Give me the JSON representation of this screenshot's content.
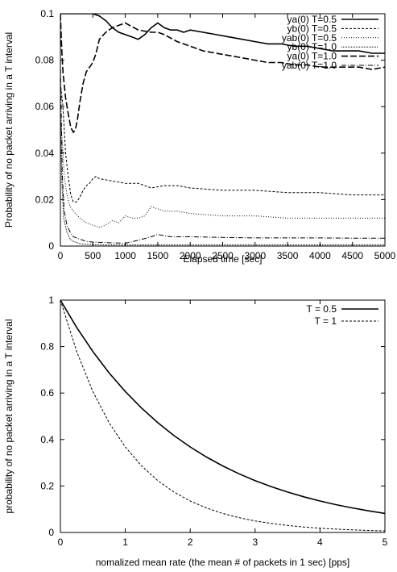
{
  "chart_data": [
    {
      "type": "line",
      "xlabel": "Elapsed time [sec]",
      "ylabel": "Probability of no packet arriving in a T interval",
      "xlim": [
        0,
        5000
      ],
      "ylim": [
        0,
        0.1
      ],
      "xticks": [
        "0",
        "500",
        "1000",
        "1500",
        "2000",
        "2500",
        "3000",
        "3500",
        "4000",
        "4500",
        "5000"
      ],
      "yticks": [
        "0",
        "0.02",
        "0.04",
        "0.06",
        "0.08",
        "0.1"
      ],
      "grid": false,
      "legend_position": "top-right",
      "series": [
        {
          "name": "ya(0)  T=0.5",
          "style": "solid",
          "x": [
            0,
            30,
            60,
            100,
            150,
            200,
            250,
            300,
            400,
            500,
            600,
            700,
            800,
            900,
            1000,
            1100,
            1200,
            1300,
            1400,
            1500,
            1600,
            1700,
            1800,
            1900,
            2000,
            2200,
            2400,
            2600,
            2800,
            3000,
            3200,
            3400,
            3600,
            3800,
            4000,
            4200,
            4400,
            4600,
            4800,
            5000
          ],
          "y": [
            0.1,
            0.1,
            0.1,
            0.1,
            0.1,
            0.1,
            0.1,
            0.1,
            0.1,
            0.1,
            0.099,
            0.097,
            0.094,
            0.092,
            0.091,
            0.09,
            0.089,
            0.091,
            0.094,
            0.096,
            0.094,
            0.093,
            0.093,
            0.092,
            0.093,
            0.092,
            0.091,
            0.09,
            0.089,
            0.088,
            0.087,
            0.087,
            0.086,
            0.086,
            0.085,
            0.084,
            0.084,
            0.084,
            0.083,
            0.083
          ]
        },
        {
          "name": "yb(0)  T=0.5",
          "style": "dashed",
          "x": [
            0,
            40,
            80,
            120,
            160,
            200,
            250,
            300,
            350,
            400,
            450,
            500,
            550,
            600,
            800,
            1000,
            1200,
            1300,
            1400,
            1600,
            1800,
            2000,
            2500,
            3000,
            3500,
            4000,
            4500,
            5000
          ],
          "y": [
            0.07,
            0.06,
            0.04,
            0.03,
            0.022,
            0.019,
            0.019,
            0.021,
            0.024,
            0.026,
            0.027,
            0.029,
            0.03,
            0.029,
            0.028,
            0.027,
            0.027,
            0.026,
            0.025,
            0.026,
            0.026,
            0.025,
            0.024,
            0.024,
            0.023,
            0.023,
            0.022,
            0.022
          ]
        },
        {
          "name": "yab(0)  T=0.5",
          "style": "dotted",
          "x": [
            0,
            30,
            60,
            100,
            150,
            200,
            300,
            400,
            500,
            600,
            700,
            800,
            900,
            1000,
            1100,
            1200,
            1300,
            1400,
            1500,
            1600,
            1800,
            2000,
            2500,
            3000,
            3500,
            4000,
            4500,
            5000
          ],
          "y": [
            0.055,
            0.045,
            0.03,
            0.022,
            0.017,
            0.015,
            0.012,
            0.01,
            0.009,
            0.008,
            0.009,
            0.011,
            0.01,
            0.013,
            0.012,
            0.012,
            0.013,
            0.017,
            0.016,
            0.015,
            0.015,
            0.014,
            0.013,
            0.013,
            0.012,
            0.012,
            0.012,
            0.012
          ]
        },
        {
          "name": "yb(0)  T=1.0",
          "style": "dense-dotted",
          "x": [
            0,
            20,
            50,
            100,
            150,
            200,
            300,
            400,
            500,
            700,
            1000,
            1500,
            2000,
            3000,
            4000,
            5000
          ],
          "y": [
            0.06,
            0.03,
            0.012,
            0.006,
            0.003,
            0.002,
            0.001,
            0.0008,
            0.0006,
            0.0005,
            0.0005,
            0.0005,
            0.0005,
            0.0005,
            0.0005,
            0.0005
          ]
        },
        {
          "name": "ya(0)  T=1.0",
          "style": "long-dash",
          "x": [
            0,
            20,
            40,
            80,
            120,
            160,
            200,
            230,
            260,
            300,
            350,
            400,
            450,
            500,
            550,
            600,
            700,
            800,
            900,
            1000,
            1200,
            1400,
            1500,
            1600,
            1800,
            2000,
            2200,
            2400,
            2600,
            2800,
            3000,
            3200,
            3400,
            3600,
            3800,
            4000,
            4200,
            4400,
            4600,
            4800,
            5000
          ],
          "y": [
            0.1,
            0.085,
            0.075,
            0.064,
            0.057,
            0.051,
            0.049,
            0.05,
            0.054,
            0.062,
            0.07,
            0.075,
            0.077,
            0.079,
            0.083,
            0.089,
            0.092,
            0.094,
            0.095,
            0.096,
            0.093,
            0.092,
            0.092,
            0.091,
            0.088,
            0.086,
            0.084,
            0.083,
            0.082,
            0.081,
            0.08,
            0.079,
            0.079,
            0.078,
            0.078,
            0.077,
            0.077,
            0.077,
            0.077,
            0.076,
            0.077
          ]
        },
        {
          "name": "yab(0)  T=1.0",
          "style": "dash-dot",
          "x": [
            0,
            30,
            60,
            100,
            150,
            200,
            300,
            400,
            500,
            700,
            1000,
            1200,
            1400,
            1500,
            1700,
            2000,
            2500,
            3000,
            3500,
            4000,
            4500,
            5000
          ],
          "y": [
            0.08,
            0.03,
            0.015,
            0.009,
            0.006,
            0.004,
            0.003,
            0.002,
            0.0017,
            0.0015,
            0.0012,
            0.0025,
            0.004,
            0.005,
            0.004,
            0.004,
            0.0037,
            0.0035,
            0.0035,
            0.0035,
            0.0034,
            0.0034
          ]
        }
      ]
    },
    {
      "type": "line",
      "xlabel": "nomalized mean rate (the mean # of packets in 1 sec) [pps]",
      "ylabel": "probability of no packet arriving in a T interval",
      "xlim": [
        0,
        5
      ],
      "ylim": [
        0,
        1
      ],
      "xticks": [
        "0",
        "1",
        "2",
        "3",
        "4",
        "5"
      ],
      "yticks": [
        "0",
        "0.2",
        "0.4",
        "0.6",
        "0.8",
        "1"
      ],
      "grid": false,
      "legend_position": "top-right",
      "series": [
        {
          "name": "T = 0.5",
          "style": "solid",
          "x": [
            0,
            0.25,
            0.5,
            0.75,
            1,
            1.25,
            1.5,
            1.75,
            2,
            2.25,
            2.5,
            2.75,
            3,
            3.25,
            3.5,
            3.75,
            4,
            4.25,
            4.5,
            4.75,
            5
          ],
          "y": [
            1,
            0.8825,
            0.7788,
            0.6873,
            0.6065,
            0.5353,
            0.4724,
            0.4169,
            0.3679,
            0.3247,
            0.2865,
            0.2528,
            0.2231,
            0.1969,
            0.1738,
            0.1534,
            0.1353,
            0.1194,
            0.1054,
            0.093,
            0.0821
          ]
        },
        {
          "name": "T = 1",
          "style": "dashed",
          "x": [
            0,
            0.25,
            0.5,
            0.75,
            1,
            1.25,
            1.5,
            1.75,
            2,
            2.25,
            2.5,
            2.75,
            3,
            3.25,
            3.5,
            3.75,
            4,
            4.25,
            4.5,
            4.75,
            5
          ],
          "y": [
            1,
            0.7788,
            0.6065,
            0.4724,
            0.3679,
            0.2865,
            0.2231,
            0.1738,
            0.1353,
            0.1054,
            0.0821,
            0.0639,
            0.0498,
            0.0388,
            0.0302,
            0.0235,
            0.0183,
            0.0143,
            0.0111,
            0.0087,
            0.0067
          ]
        }
      ]
    }
  ]
}
